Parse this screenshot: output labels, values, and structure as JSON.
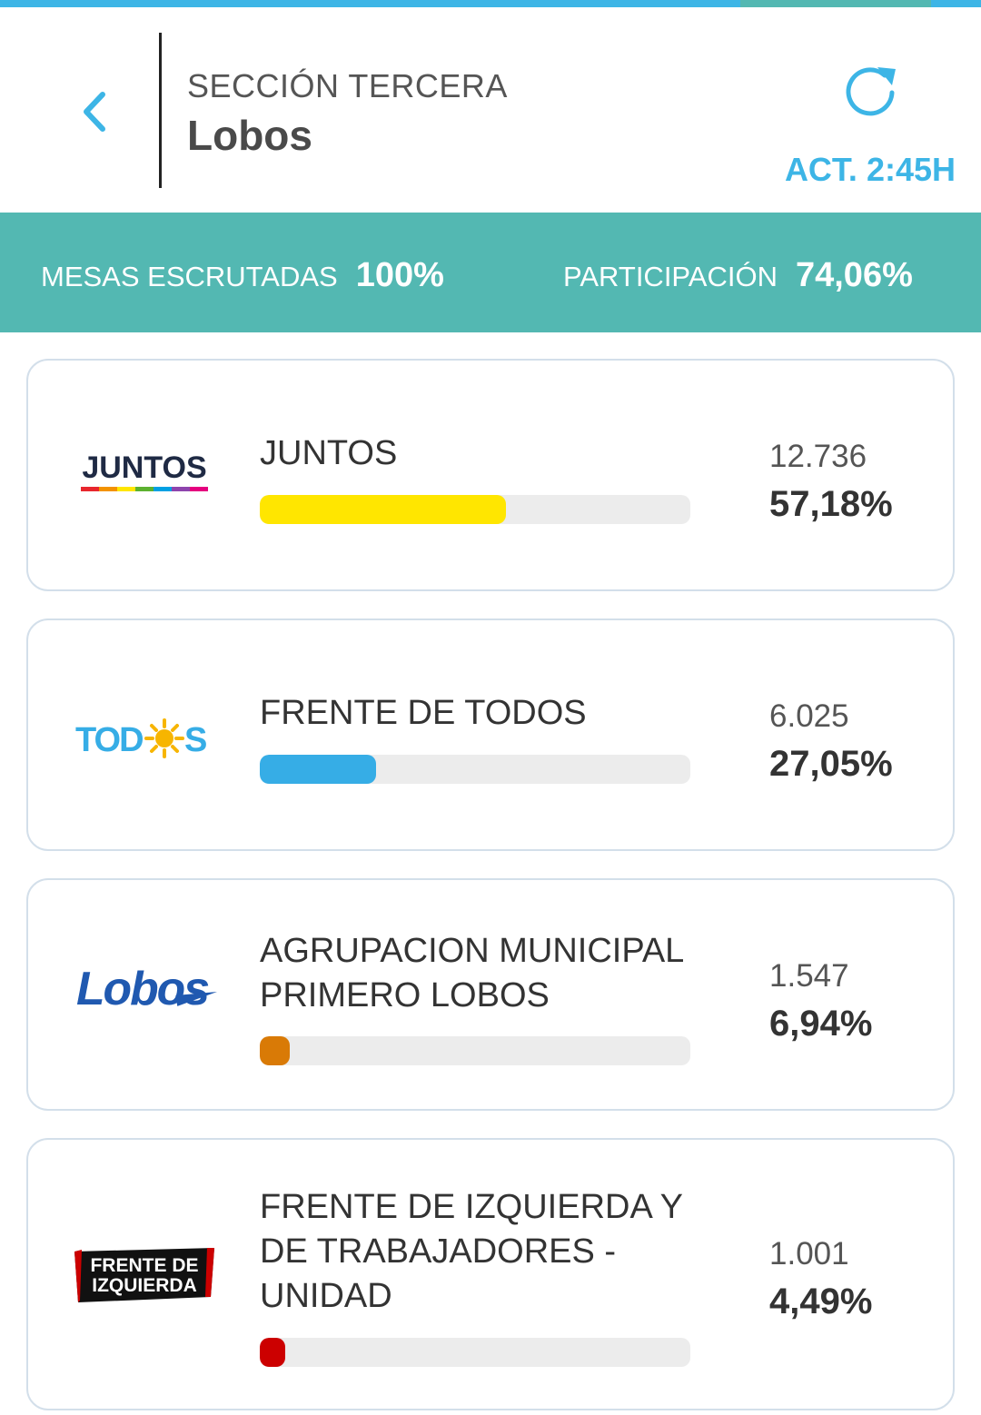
{
  "header": {
    "section": "SECCIÓN TERCERA",
    "place": "Lobos",
    "update": "ACT. 2:45H",
    "accent_color": "#3db5e6"
  },
  "stats": {
    "mesas_label": "MESAS ESCRUTADAS",
    "mesas_value": "100%",
    "participacion_label": "PARTICIPACIÓN",
    "participacion_value": "74,06%",
    "bar_color": "#53b8b2"
  },
  "parties": [
    {
      "name": "JUNTOS",
      "logo_text": "JUNTOS",
      "votes": "12.736",
      "percent": "57,18%",
      "share": 0.5718,
      "color": "#ffe600"
    },
    {
      "name": "FRENTE DE TODOS",
      "logo_text": "TODOS",
      "votes": "6.025",
      "percent": "27,05%",
      "share": 0.2705,
      "color": "#36ade6"
    },
    {
      "name": "AGRUPACION MUNICIPAL PRIMERO LOBOS",
      "logo_text": "Lobos",
      "votes": "1.547",
      "percent": "6,94%",
      "share": 0.0694,
      "color": "#d97a06"
    },
    {
      "name": "FRENTE DE IZQUIERDA Y DE TRABAJADORES - UNIDAD",
      "logo_text": "FRENTE DE IZQUIERDA",
      "votes": "1.001",
      "percent": "4,49%",
      "share": 0.0449,
      "color": "#cc0000"
    }
  ],
  "icons": {
    "back": "chevron-left-icon",
    "refresh": "refresh-icon"
  }
}
